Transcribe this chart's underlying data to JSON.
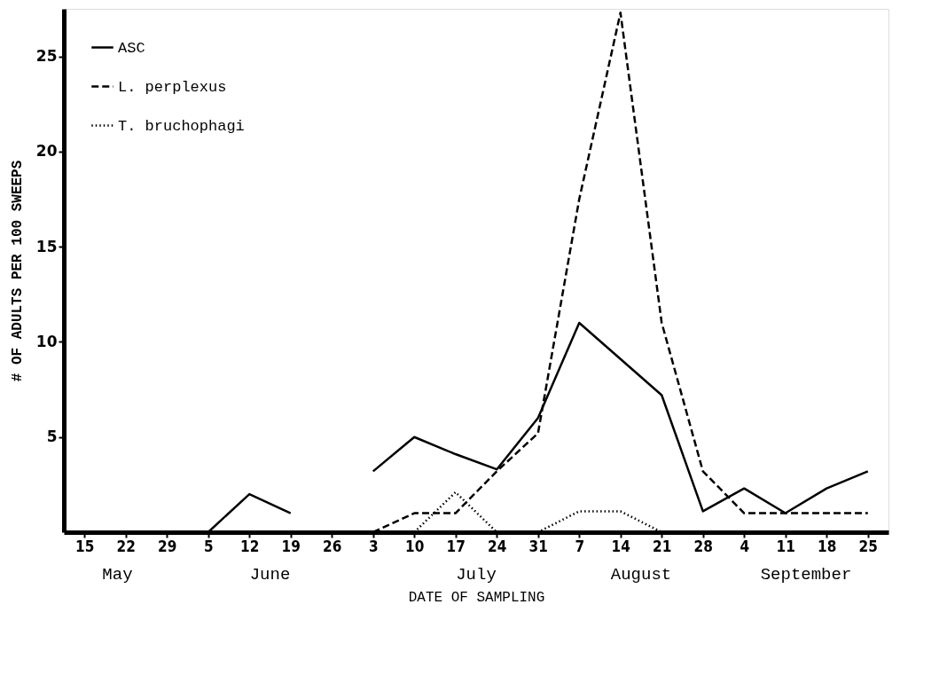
{
  "chart_data": {
    "type": "line",
    "xlabel": "DATE OF SAMPLING",
    "ylabel": "# OF ADULTS PER 100 SWEEPS",
    "categories": [
      "15",
      "22",
      "29",
      "5",
      "12",
      "19",
      "26",
      "3",
      "10",
      "17",
      "24",
      "31",
      "7",
      "14",
      "21",
      "28",
      "4",
      "11",
      "18",
      "25"
    ],
    "series": [
      {
        "name": "ASC",
        "color": "#000000",
        "line_style": "solid",
        "values": [
          null,
          null,
          null,
          0,
          2,
          1,
          null,
          3.2,
          5,
          4.1,
          3.3,
          6,
          11,
          9.1,
          7.2,
          1.1,
          2.3,
          1,
          2.3,
          3.2
        ]
      },
      {
        "name": "L. perplexus",
        "color": "#000000",
        "line_style": "dashed",
        "values": [
          null,
          null,
          null,
          null,
          null,
          null,
          null,
          0,
          1,
          1,
          3.2,
          5.2,
          17.5,
          27.3,
          11,
          3.2,
          1,
          1,
          1,
          1
        ]
      },
      {
        "name": "T. bruchophagi",
        "color": "#000000",
        "line_style": "dotted",
        "values": [
          null,
          null,
          null,
          null,
          null,
          null,
          null,
          null,
          0,
          2.1,
          0,
          0,
          1.1,
          1.1,
          0,
          null,
          null,
          null,
          null,
          null
        ]
      }
    ],
    "ylim": [
      0,
      27.5
    ],
    "yticks": [
      5,
      10,
      15,
      20,
      25
    ],
    "annotations": [
      "May",
      "June",
      "July",
      "August",
      "September"
    ],
    "legend": "top left",
    "grid": false,
    "marker": "none"
  }
}
